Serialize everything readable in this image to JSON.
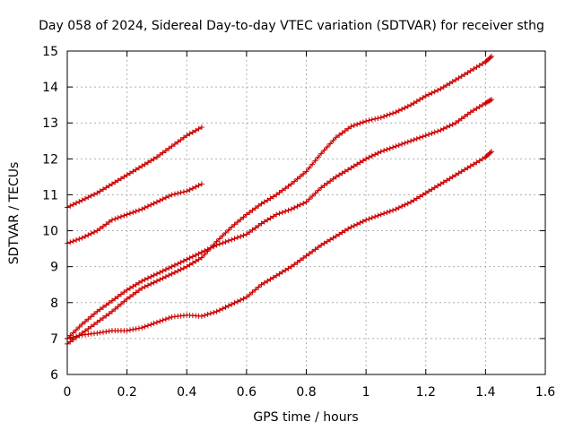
{
  "chart_data": {
    "type": "scatter",
    "title": "Day 058 of 2024, Sidereal Day-to-day VTEC variation (SDTVAR) for receiver sthg",
    "xlabel": "GPS time / hours",
    "ylabel": "SDTVAR / TECUs",
    "xlim": [
      0,
      1.6
    ],
    "ylim": [
      6,
      15
    ],
    "xticks": [
      "0",
      "0.2",
      "0.4",
      "0.6",
      "0.8",
      "1",
      "1.2",
      "1.4",
      "1.6"
    ],
    "yticks": [
      "6",
      "7",
      "8",
      "9",
      "10",
      "11",
      "12",
      "13",
      "14",
      "15"
    ],
    "xtick_values": [
      0,
      0.2,
      0.4,
      0.6,
      0.8,
      1.0,
      1.2,
      1.4,
      1.6
    ],
    "ytick_values": [
      6,
      7,
      8,
      9,
      10,
      11,
      12,
      13,
      14,
      15
    ],
    "grid": true,
    "marker": "+",
    "color": "#cc0000",
    "series": [
      {
        "name": "series-1",
        "x": [
          0,
          0.05,
          0.1,
          0.15,
          0.2,
          0.25,
          0.3,
          0.35,
          0.4,
          0.45
        ],
        "y": [
          10.65,
          10.85,
          11.05,
          11.3,
          11.55,
          11.8,
          12.05,
          12.35,
          12.65,
          12.88
        ]
      },
      {
        "name": "series-2",
        "x": [
          0,
          0.05,
          0.1,
          0.15,
          0.2,
          0.25,
          0.3,
          0.35,
          0.4,
          0.45
        ],
        "y": [
          9.65,
          9.8,
          10.0,
          10.3,
          10.45,
          10.6,
          10.8,
          11.0,
          11.1,
          11.3
        ]
      },
      {
        "name": "series-3",
        "x": [
          0,
          0.05,
          0.1,
          0.15,
          0.2,
          0.25,
          0.3,
          0.35,
          0.4,
          0.45,
          0.5,
          0.55,
          0.6,
          0.65,
          0.7,
          0.75,
          0.8,
          0.85,
          0.9,
          0.95,
          1.0,
          1.05,
          1.1,
          1.15,
          1.2,
          1.25,
          1.3,
          1.35,
          1.4,
          1.42
        ],
        "y": [
          7.0,
          7.4,
          7.75,
          8.05,
          8.35,
          8.6,
          8.8,
          9.0,
          9.2,
          9.4,
          9.6,
          9.75,
          9.9,
          10.2,
          10.45,
          10.6,
          10.8,
          11.2,
          11.5,
          11.75,
          12.0,
          12.2,
          12.35,
          12.5,
          12.65,
          12.8,
          13.0,
          13.3,
          13.55,
          13.65
        ]
      },
      {
        "name": "series-4",
        "x": [
          0,
          0.05,
          0.1,
          0.15,
          0.2,
          0.25,
          0.3,
          0.35,
          0.4,
          0.45,
          0.5,
          0.55,
          0.6,
          0.65,
          0.7,
          0.75,
          0.8,
          0.85,
          0.9,
          0.95,
          1.0,
          1.05,
          1.1,
          1.15,
          1.2,
          1.25,
          1.3,
          1.35,
          1.4,
          1.42
        ],
        "y": [
          6.85,
          7.15,
          7.45,
          7.75,
          8.1,
          8.4,
          8.6,
          8.8,
          9.0,
          9.25,
          9.7,
          10.1,
          10.45,
          10.75,
          11.0,
          11.3,
          11.65,
          12.15,
          12.6,
          12.9,
          13.05,
          13.15,
          13.3,
          13.5,
          13.75,
          13.95,
          14.2,
          14.45,
          14.7,
          14.85
        ]
      },
      {
        "name": "series-5",
        "x": [
          0,
          0.05,
          0.1,
          0.15,
          0.2,
          0.25,
          0.3,
          0.35,
          0.4,
          0.45,
          0.5,
          0.55,
          0.6,
          0.65,
          0.7,
          0.75,
          0.8,
          0.85,
          0.9,
          0.95,
          1.0,
          1.05,
          1.1,
          1.15,
          1.2,
          1.25,
          1.3,
          1.35,
          1.4,
          1.42
        ],
        "y": [
          7.0,
          7.1,
          7.15,
          7.22,
          7.22,
          7.3,
          7.45,
          7.6,
          7.65,
          7.62,
          7.75,
          7.95,
          8.15,
          8.5,
          8.75,
          9.0,
          9.3,
          9.6,
          9.85,
          10.1,
          10.3,
          10.45,
          10.6,
          10.8,
          11.05,
          11.3,
          11.55,
          11.8,
          12.05,
          12.2
        ]
      }
    ]
  }
}
